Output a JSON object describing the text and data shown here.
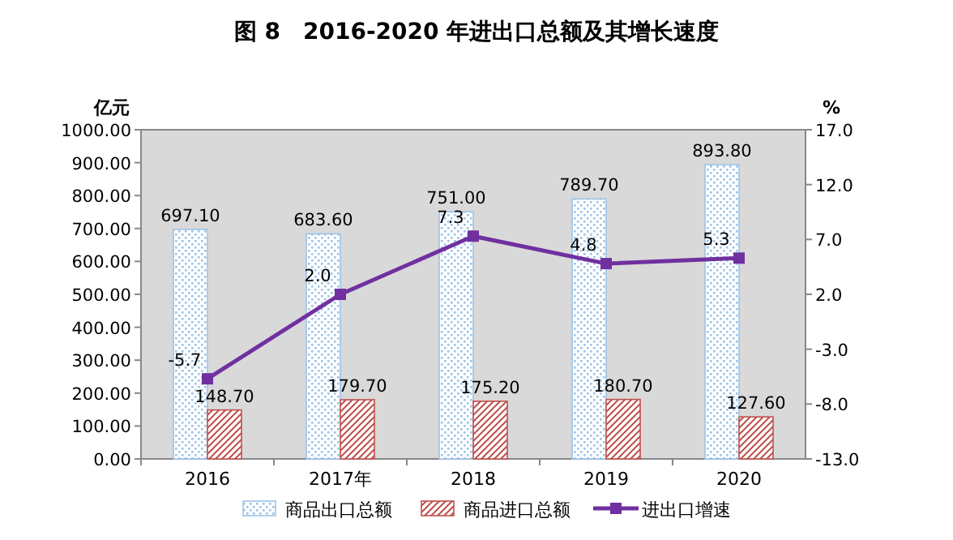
{
  "chart_data": {
    "type": "bar",
    "title": "图 8　2016-2020 年进出口总额及其增长速度",
    "ylabel": "亿元",
    "y2label": "%",
    "categories": [
      "2016",
      "2017年",
      "2018",
      "2019",
      "2020"
    ],
    "series": [
      {
        "name": "商品出口总额",
        "color": "#9dc3e6",
        "values": [
          697.1,
          683.6,
          751.0,
          789.7,
          893.8
        ],
        "value_labels": [
          "697.10",
          "683.60",
          "751.00",
          "789.70",
          "893.80"
        ]
      },
      {
        "name": "商品进口总额",
        "color": "#c0504d",
        "values": [
          148.7,
          179.7,
          175.2,
          180.7,
          127.6
        ],
        "value_labels": [
          "148.70",
          "179.70",
          "175.20",
          "180.70",
          "127.60"
        ]
      },
      {
        "name": "进出口增速",
        "type": "line",
        "axis": "y2",
        "color": "#7030a0",
        "marker": "square",
        "values": [
          -5.7,
          2.0,
          7.3,
          4.8,
          5.3
        ],
        "value_labels": [
          "-5.7",
          "2.0",
          "7.3",
          "4.8",
          "5.3"
        ]
      }
    ],
    "ylim": [
      0,
      1000
    ],
    "yticks": [
      {
        "value": 0,
        "label": "0.00"
      },
      {
        "value": 100,
        "label": "100.00"
      },
      {
        "value": 200,
        "label": "200.00"
      },
      {
        "value": 300,
        "label": "300.00"
      },
      {
        "value": 400,
        "label": "400.00"
      },
      {
        "value": 500,
        "label": "500.00"
      },
      {
        "value": 600,
        "label": "600.00"
      },
      {
        "value": 700,
        "label": "700.00"
      },
      {
        "value": 800,
        "label": "800.00"
      },
      {
        "value": 900,
        "label": "900.00"
      },
      {
        "value": 1000,
        "label": "1000.00"
      }
    ],
    "y2lim": [
      -13,
      17
    ],
    "y2ticks": [
      {
        "value": -13,
        "label": "-13.0"
      },
      {
        "value": -8,
        "label": "-8.0"
      },
      {
        "value": -3,
        "label": "-3.0"
      },
      {
        "value": 2,
        "label": "2.0"
      },
      {
        "value": 7,
        "label": "7.0"
      },
      {
        "value": 12,
        "label": "12.0"
      },
      {
        "value": 17,
        "label": "17.0"
      }
    ],
    "legend": "bottom"
  }
}
